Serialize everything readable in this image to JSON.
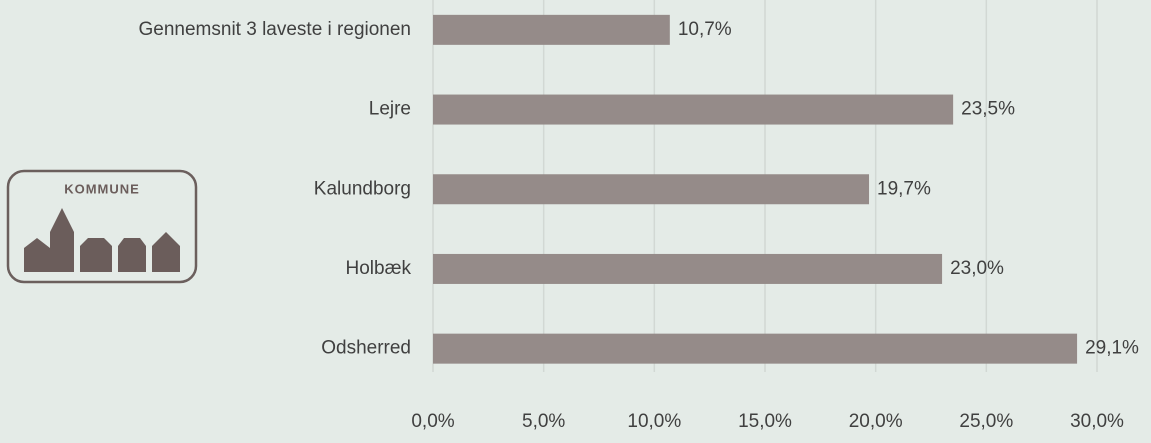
{
  "chart_data": {
    "type": "bar",
    "orientation": "horizontal",
    "categories": [
      "Gennemsnit 3 laveste i regionen",
      "Lejre",
      "Kalundborg",
      "Holbæk",
      "Odsherred"
    ],
    "values": [
      10.7,
      23.5,
      19.7,
      23.0,
      29.1
    ],
    "value_labels": [
      "10,7%",
      "23,5%",
      "19,7%",
      "23,0%",
      "29,1%"
    ],
    "color": "#958b89",
    "xlim": [
      0,
      30
    ],
    "xticks": [
      {
        "value": 0,
        "label": "0,0%"
      },
      {
        "value": 5,
        "label": "5,0%"
      },
      {
        "value": 10,
        "label": "10,0%"
      },
      {
        "value": 15,
        "label": "15,0%"
      },
      {
        "value": 20,
        "label": "20,0%"
      },
      {
        "value": 25,
        "label": "25,0%"
      },
      {
        "value": 30,
        "label": "30,0%"
      }
    ],
    "grid": true
  },
  "logo": {
    "text": "KOMMUNE"
  }
}
